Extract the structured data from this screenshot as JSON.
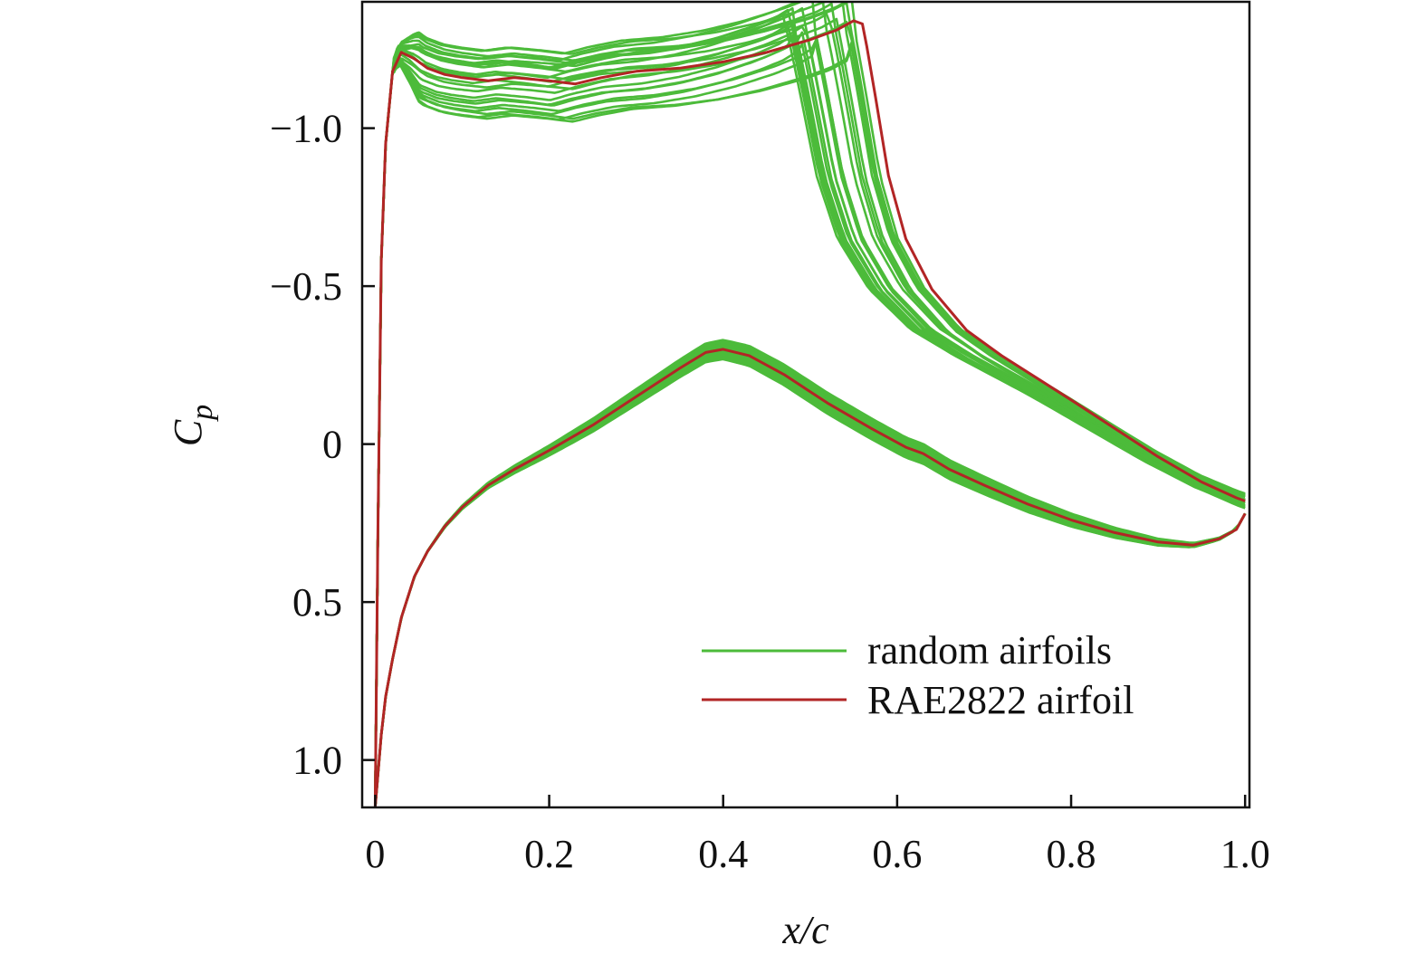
{
  "chart_data": {
    "type": "line",
    "title": "",
    "xlabel": "x/c",
    "ylabel_main": "C",
    "ylabel_sub": "p",
    "xlim": [
      -0.015,
      1.005
    ],
    "ylim": [
      1.15,
      -1.4
    ],
    "y_inverted": true,
    "grid": false,
    "legend_position": "lower-right",
    "xticks": [
      0,
      0.2,
      0.4,
      0.6,
      0.8,
      1.0
    ],
    "xtick_labels": [
      "0",
      "0.2",
      "0.4",
      "0.6",
      "0.8",
      "1.0"
    ],
    "yticks": [
      -1.0,
      -0.5,
      0,
      0.5,
      1.0
    ],
    "ytick_labels": [
      "−1.0",
      "−0.5",
      "0",
      "0.5",
      "1.0"
    ],
    "colors": {
      "random": "#4cbb3a",
      "baseline": "#b22525"
    },
    "legend": [
      {
        "label": "random airfoils",
        "color": "#4cbb3a"
      },
      {
        "label": "RAE2822 airfoil",
        "color": "#b22525"
      }
    ],
    "series": [
      {
        "name": "RAE2822 airfoil upper",
        "x": [
          0.0,
          0.003,
          0.007,
          0.012,
          0.02,
          0.03,
          0.045,
          0.06,
          0.08,
          0.1,
          0.13,
          0.16,
          0.2,
          0.23,
          0.26,
          0.3,
          0.35,
          0.4,
          0.45,
          0.5,
          0.53,
          0.55,
          0.56,
          0.565,
          0.575,
          0.59,
          0.61,
          0.64,
          0.68,
          0.72,
          0.76,
          0.8,
          0.85,
          0.9,
          0.95,
          0.99,
          1.0
        ],
        "y": [
          1.15,
          0.3,
          -0.58,
          -0.95,
          -1.18,
          -1.24,
          -1.22,
          -1.19,
          -1.17,
          -1.16,
          -1.15,
          -1.16,
          -1.15,
          -1.14,
          -1.16,
          -1.18,
          -1.19,
          -1.21,
          -1.24,
          -1.28,
          -1.31,
          -1.34,
          -1.33,
          -1.26,
          -1.1,
          -0.85,
          -0.65,
          -0.49,
          -0.36,
          -0.28,
          -0.21,
          -0.14,
          -0.05,
          0.04,
          0.12,
          0.17,
          0.18
        ]
      },
      {
        "name": "RAE2822 airfoil lower",
        "x": [
          0.0,
          0.003,
          0.007,
          0.012,
          0.02,
          0.03,
          0.045,
          0.06,
          0.08,
          0.1,
          0.13,
          0.16,
          0.2,
          0.25,
          0.3,
          0.35,
          0.38,
          0.4,
          0.43,
          0.47,
          0.52,
          0.57,
          0.61,
          0.63,
          0.66,
          0.7,
          0.75,
          0.8,
          0.85,
          0.9,
          0.94,
          0.97,
          0.99,
          1.0
        ],
        "y": [
          1.15,
          1.05,
          0.92,
          0.8,
          0.68,
          0.55,
          0.42,
          0.34,
          0.26,
          0.2,
          0.13,
          0.08,
          0.02,
          -0.06,
          -0.15,
          -0.24,
          -0.29,
          -0.3,
          -0.28,
          -0.22,
          -0.13,
          -0.05,
          0.01,
          0.03,
          0.08,
          0.13,
          0.19,
          0.24,
          0.28,
          0.31,
          0.32,
          0.3,
          0.27,
          0.22
        ]
      }
    ],
    "random_family": {
      "count": 24,
      "upper_plateau_range": [
        -1.05,
        -1.27
      ],
      "shock_location_range": [
        0.47,
        0.56
      ],
      "lower_peak_range": [
        -0.28,
        -0.36
      ]
    }
  }
}
